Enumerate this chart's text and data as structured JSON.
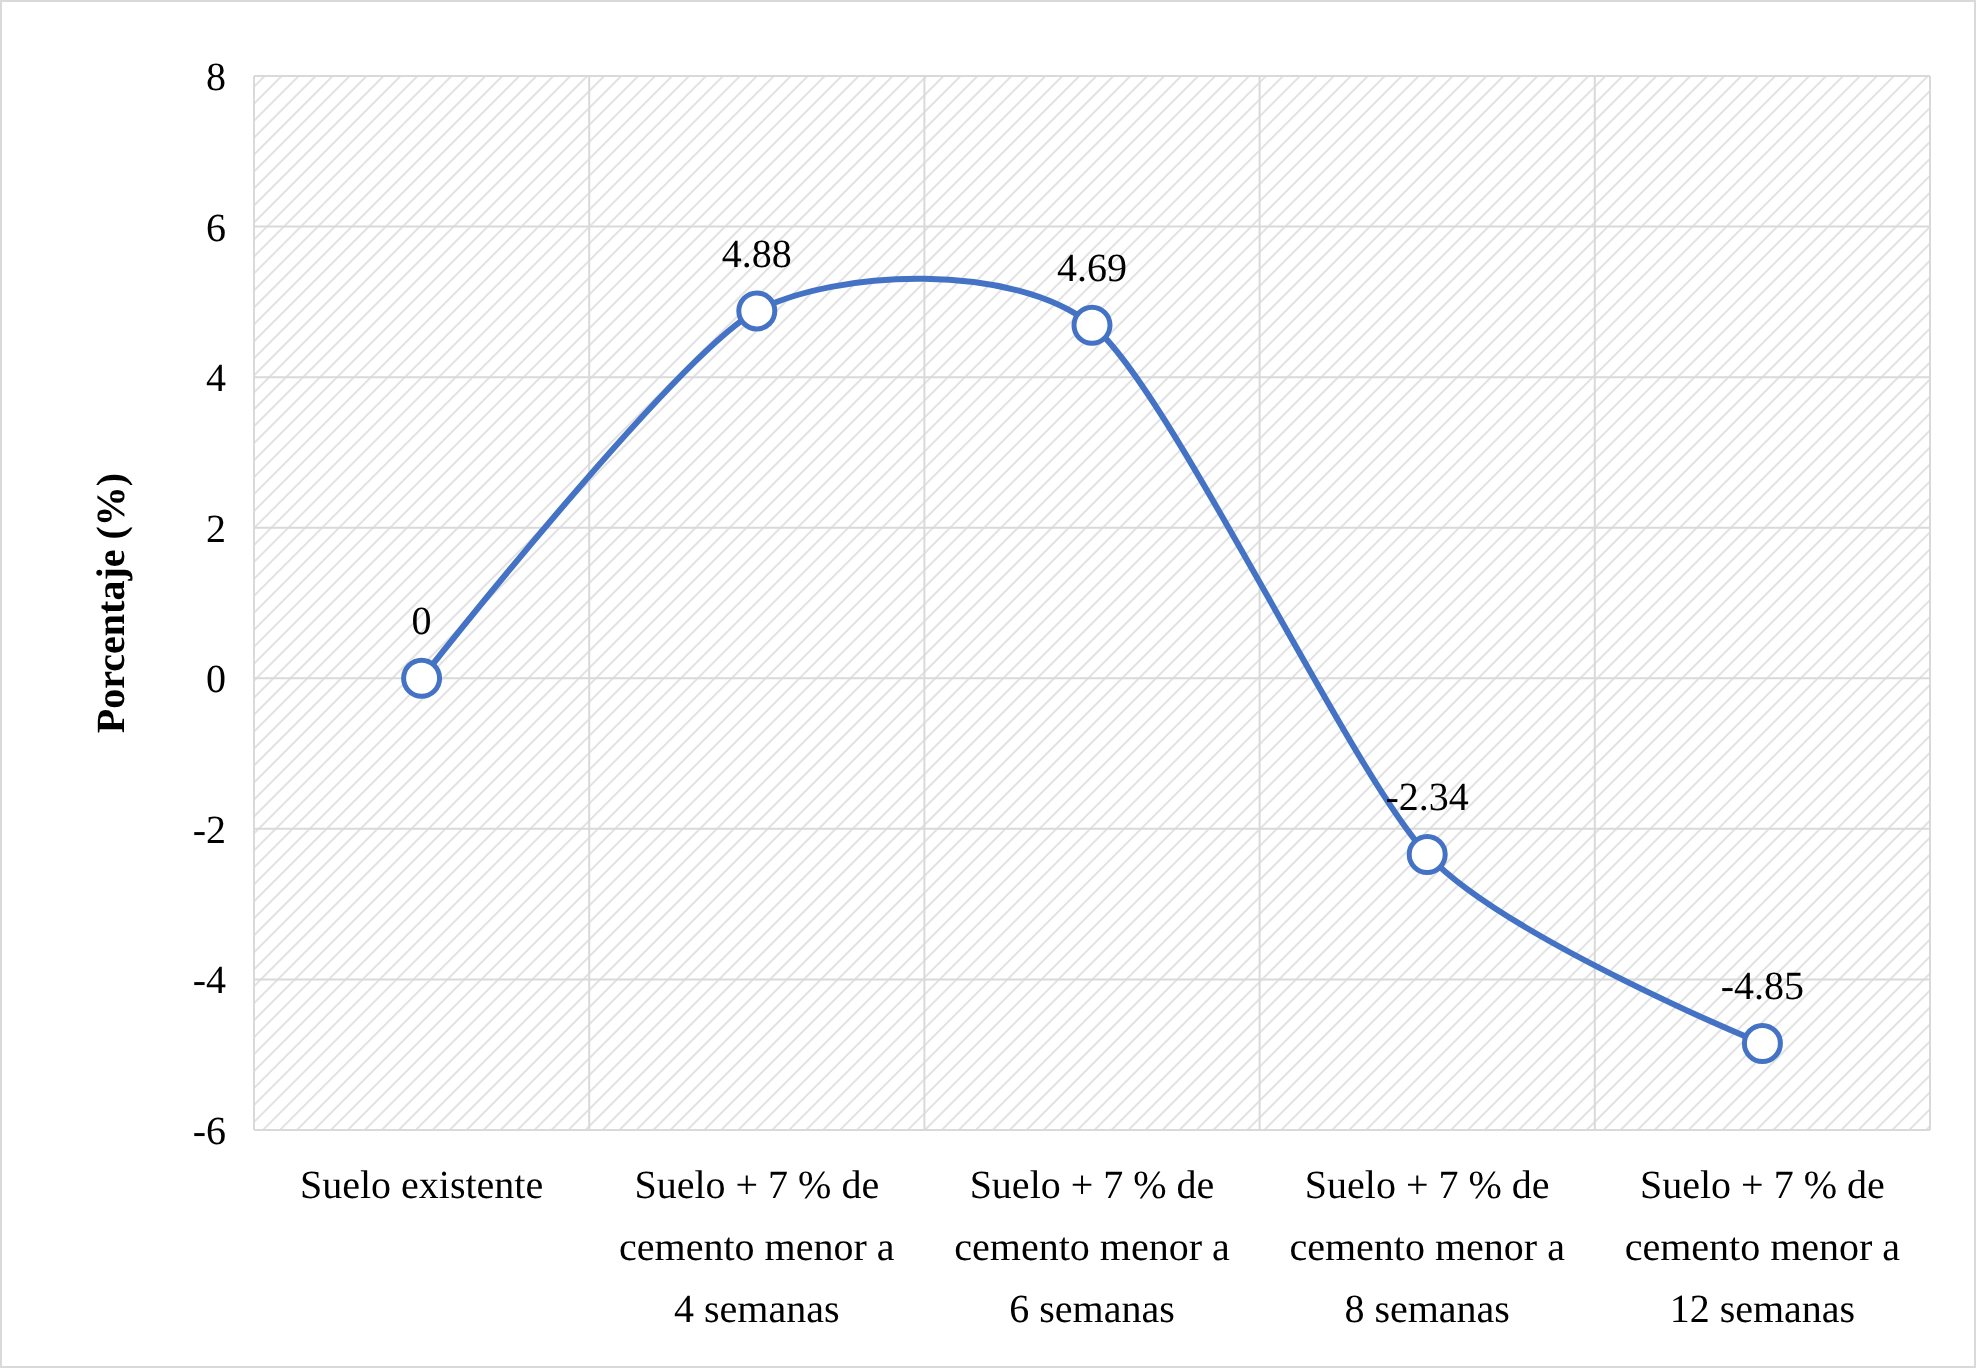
{
  "chart_data": {
    "type": "line",
    "ylabel": "Porcentaje (%)",
    "categories": [
      "Suelo existente",
      "Suelo + 7 % de cemento menor a 4 semanas",
      "Suelo + 7 % de cemento menor a 6 semanas",
      "Suelo + 7 % de cemento menor a 8 semanas",
      "Suelo + 7 % de cemento menor a 12 semanas"
    ],
    "series": [
      {
        "color": "#4472c4",
        "values": [
          0,
          4.88,
          4.69,
          -2.34,
          -4.85
        ]
      }
    ],
    "ylim": [
      -6,
      8
    ],
    "yticks": [
      -6,
      -4,
      -2,
      0,
      2,
      4,
      6,
      8
    ],
    "grid": true,
    "marker": "circle",
    "line_style": "solid",
    "data_labels": true
  }
}
